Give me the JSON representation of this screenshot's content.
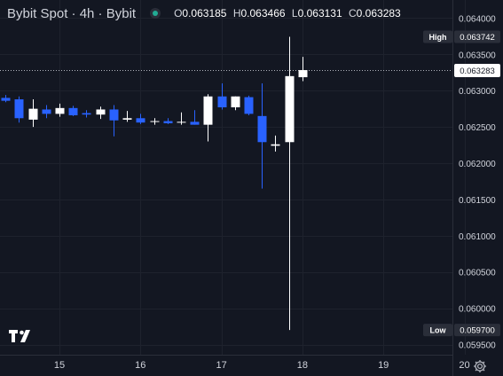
{
  "header": {
    "symbol": "Bybit Spot · 4h · Bybit",
    "ohlc": [
      {
        "k": "O",
        "v": "0.063185"
      },
      {
        "k": "H",
        "v": "0.063466"
      },
      {
        "k": "L",
        "v": "0.063131"
      },
      {
        "k": "C",
        "v": "0.063283"
      }
    ]
  },
  "icons": {
    "logo": "tradingview-logo-icon",
    "settings": "gear-icon",
    "status": "market-status-dot-icon"
  },
  "colors": {
    "background": "#131722",
    "up": "#ffffff",
    "down": "#2962ff",
    "grid": "#1e222d",
    "text": "#d1d4dc"
  },
  "chart_data": {
    "type": "candlestick",
    "ylim": [
      0.0593,
      0.0643
    ],
    "xlim": [
      14.25,
      20.15
    ],
    "x_ticks": [
      {
        "x": 15,
        "label": "15"
      },
      {
        "x": 16,
        "label": "16"
      },
      {
        "x": 17,
        "label": "17"
      },
      {
        "x": 18,
        "label": "18"
      },
      {
        "x": 19,
        "label": "19"
      },
      {
        "x": 20,
        "label": "20"
      }
    ],
    "y_ticks": [
      "0.064000",
      "0.063500",
      "0.063000",
      "0.062500",
      "0.062000",
      "0.061500",
      "0.061000",
      "0.060500",
      "0.060000",
      "0.059500"
    ],
    "candles": [
      {
        "t": 14.333,
        "o": 0.0629,
        "h": 0.06294,
        "l": 0.06284,
        "c": 0.06286
      },
      {
        "t": 14.5,
        "o": 0.06288,
        "h": 0.06292,
        "l": 0.06256,
        "c": 0.06262
      },
      {
        "t": 14.667,
        "o": 0.0626,
        "h": 0.06288,
        "l": 0.0625,
        "c": 0.06275
      },
      {
        "t": 14.833,
        "o": 0.06274,
        "h": 0.0628,
        "l": 0.06262,
        "c": 0.06268
      },
      {
        "t": 15.0,
        "o": 0.06268,
        "h": 0.06282,
        "l": 0.06264,
        "c": 0.06276
      },
      {
        "t": 15.167,
        "o": 0.06276,
        "h": 0.06279,
        "l": 0.06265,
        "c": 0.06266
      },
      {
        "t": 15.333,
        "o": 0.06269,
        "h": 0.06273,
        "l": 0.06263,
        "c": 0.06267
      },
      {
        "t": 15.5,
        "o": 0.06267,
        "h": 0.06278,
        "l": 0.06261,
        "c": 0.06274
      },
      {
        "t": 15.667,
        "o": 0.06274,
        "h": 0.0628,
        "l": 0.06237,
        "c": 0.06259
      },
      {
        "t": 15.833,
        "o": 0.0626,
        "h": 0.06272,
        "l": 0.06257,
        "c": 0.06262
      },
      {
        "t": 16.0,
        "o": 0.06262,
        "h": 0.06268,
        "l": 0.06254,
        "c": 0.06256
      },
      {
        "t": 16.167,
        "o": 0.06257,
        "h": 0.06262,
        "l": 0.06253,
        "c": 0.06258
      },
      {
        "t": 16.333,
        "o": 0.06258,
        "h": 0.06262,
        "l": 0.06254,
        "c": 0.06255
      },
      {
        "t": 16.5,
        "o": 0.06256,
        "h": 0.0627,
        "l": 0.06253,
        "c": 0.06257
      },
      {
        "t": 16.667,
        "o": 0.06257,
        "h": 0.06273,
        "l": 0.06253,
        "c": 0.06253
      },
      {
        "t": 16.833,
        "o": 0.06253,
        "h": 0.06295,
        "l": 0.0623,
        "c": 0.06292
      },
      {
        "t": 17.0,
        "o": 0.06292,
        "h": 0.0631,
        "l": 0.06274,
        "c": 0.06277
      },
      {
        "t": 17.167,
        "o": 0.06277,
        "h": 0.06292,
        "l": 0.06273,
        "c": 0.06292
      },
      {
        "t": 17.333,
        "o": 0.06291,
        "h": 0.06293,
        "l": 0.06266,
        "c": 0.06268
      },
      {
        "t": 17.5,
        "o": 0.06265,
        "h": 0.0631,
        "l": 0.06165,
        "c": 0.06229
      },
      {
        "t": 17.667,
        "o": 0.06224,
        "h": 0.06238,
        "l": 0.06216,
        "c": 0.06226
      },
      {
        "t": 17.833,
        "o": 0.06229,
        "h": 0.063742,
        "l": 0.0597,
        "c": 0.0632
      },
      {
        "t": 18.0,
        "o": 0.063185,
        "h": 0.063466,
        "l": 0.063131,
        "c": 0.063283
      }
    ],
    "high_marker": {
      "label": "High",
      "value": "0.063742"
    },
    "low_marker": {
      "label": "Low",
      "value": "0.059700"
    },
    "last_price": "0.063283"
  }
}
